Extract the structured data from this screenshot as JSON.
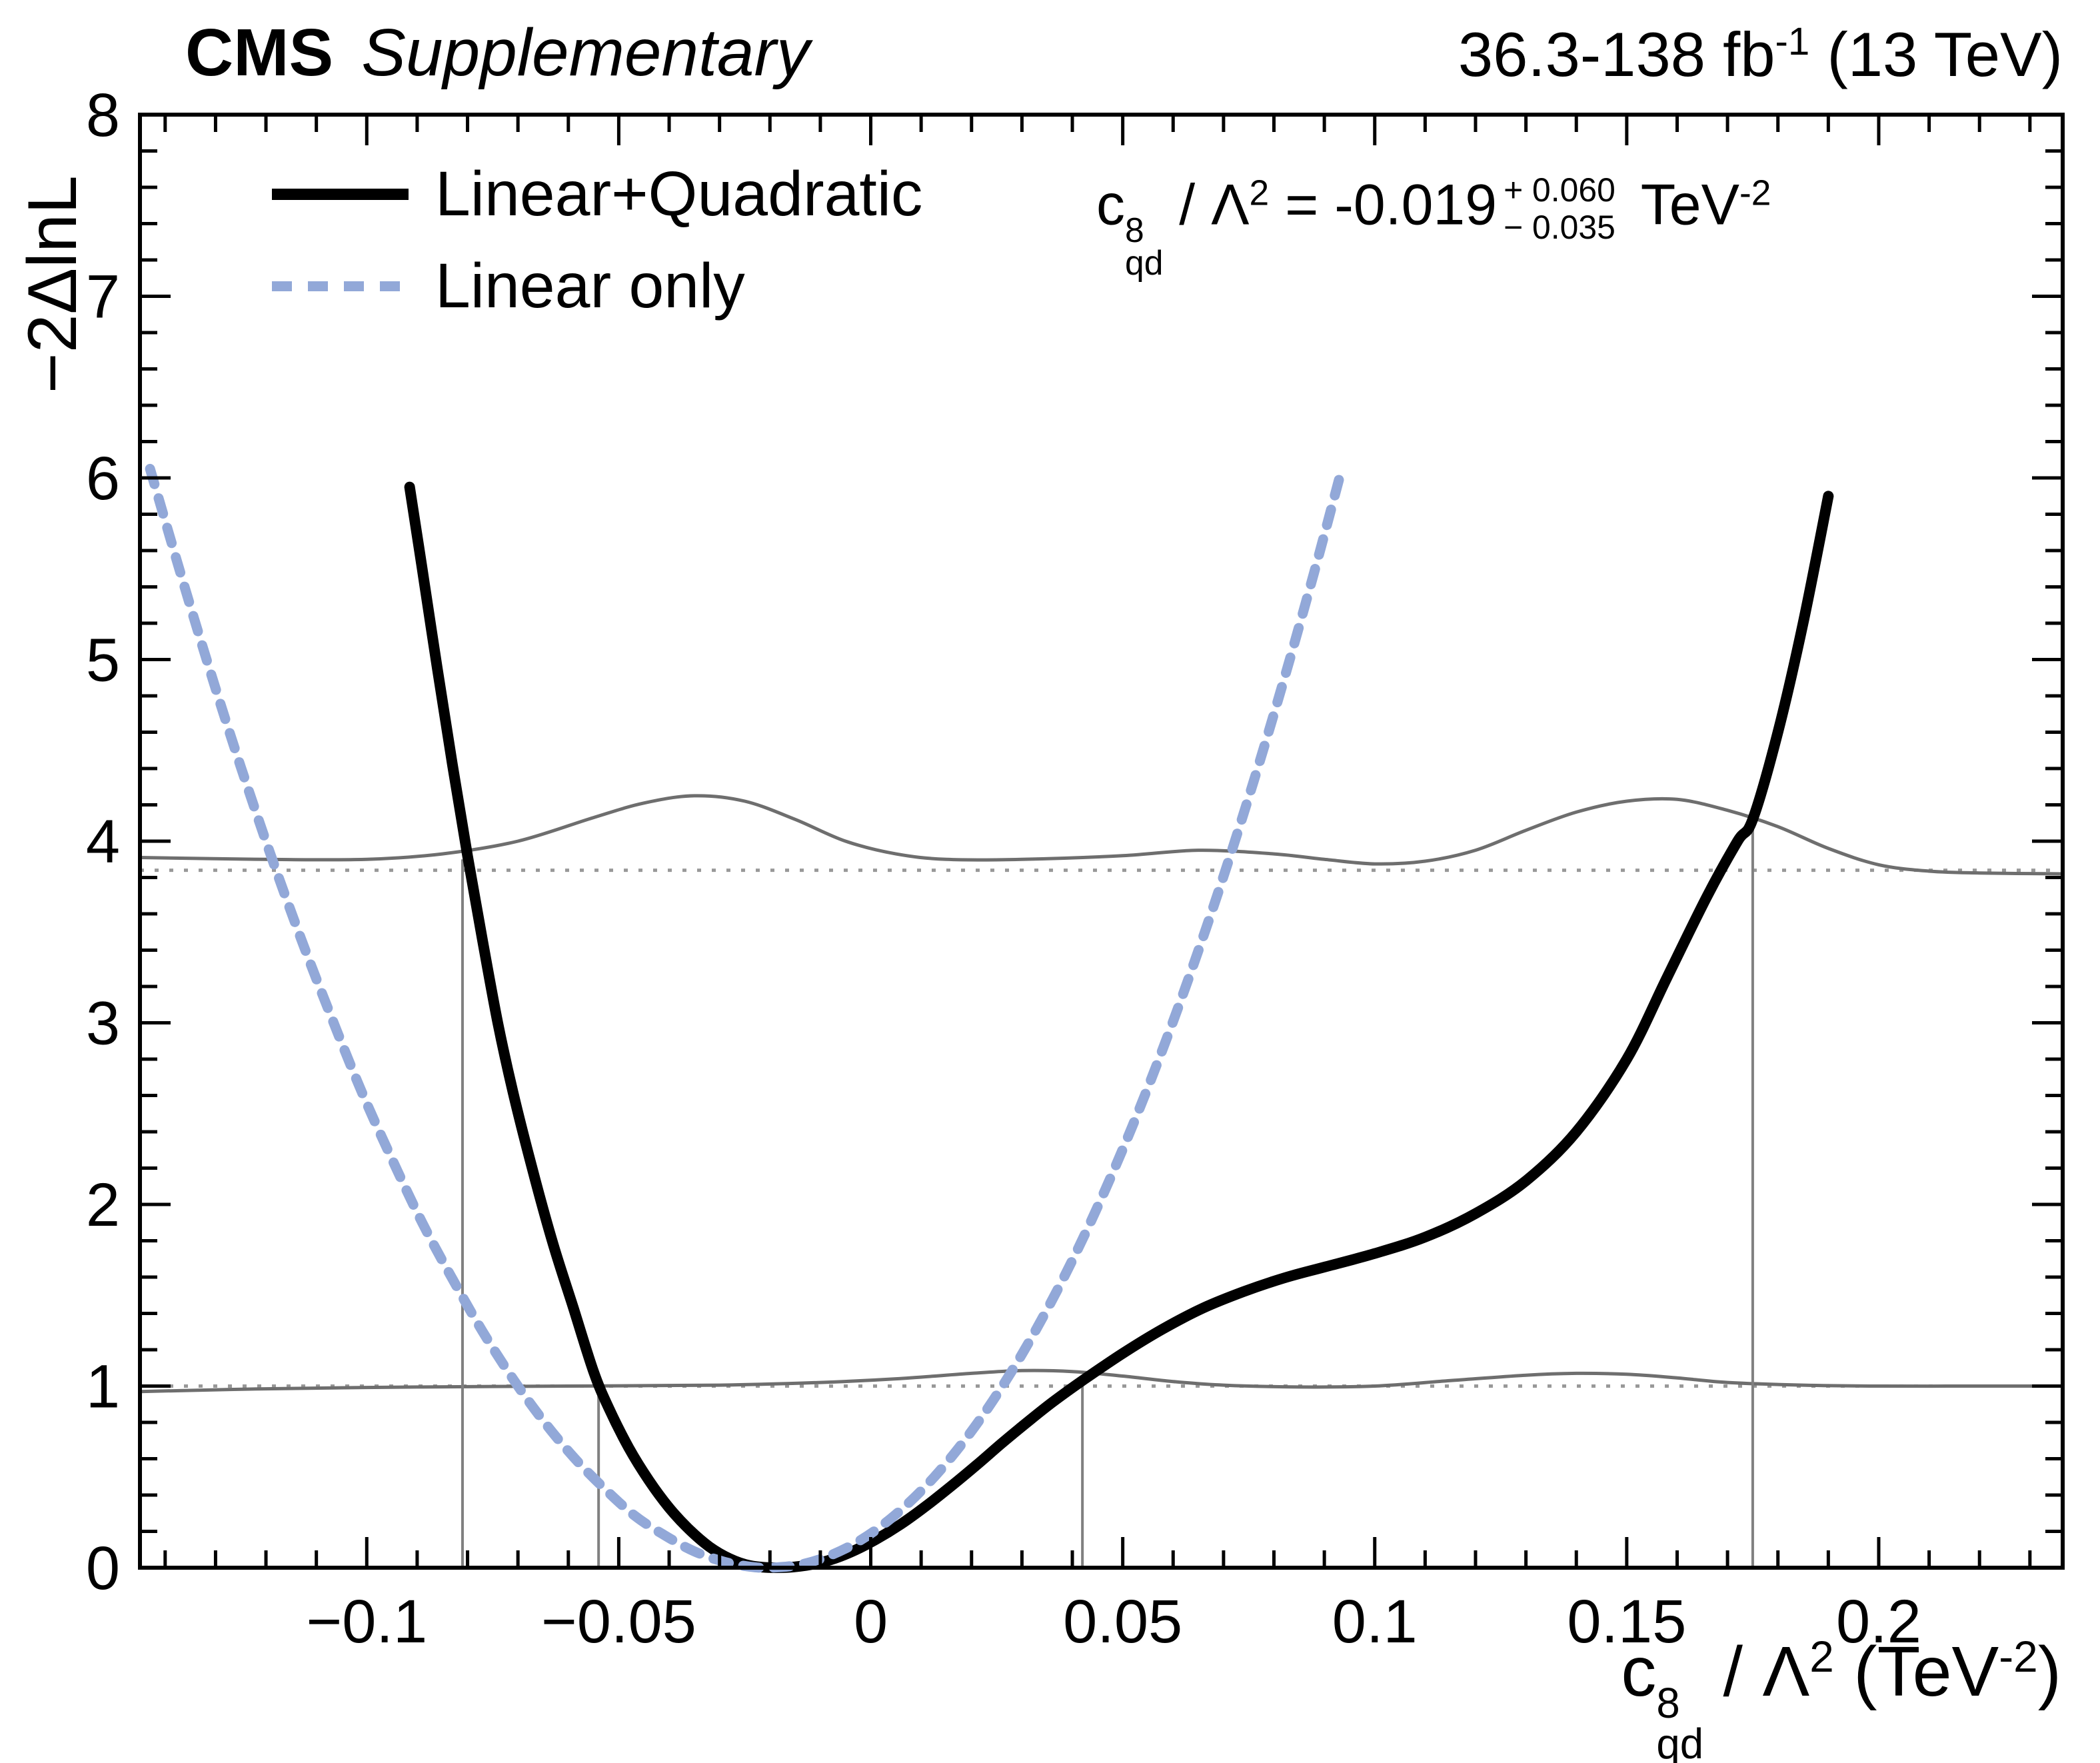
{
  "header": {
    "experiment": "CMS",
    "tag": "Supplementary",
    "lumi_text": "36.3-138 fb",
    "lumi_sup": "-1",
    "lumi_suffix": " (13 TeV)"
  },
  "legend": {
    "items": [
      {
        "label": "Linear+Quadratic",
        "style": "solid",
        "color": "#000000"
      },
      {
        "label": "Linear only",
        "style": "dashed",
        "color": "#92a8d8"
      }
    ]
  },
  "result_annotation": {
    "coeff": "c",
    "coeff_sup": "8",
    "coeff_sub": "qd",
    "slash": " / ",
    "lambda": "Λ",
    "lambda_sup": "2",
    "equals": " = ",
    "central": "-0.019",
    "err_up": "+ 0.060",
    "err_down": "− 0.035",
    "unit": " TeV",
    "unit_sup": "-2"
  },
  "axes": {
    "y_title": "−2ΔlnL",
    "x_coeff": "c",
    "x_coeff_sup": "8",
    "x_coeff_sub": "qd",
    "x_mid": " / ",
    "x_lambda": "Λ",
    "x_lambda_sup": "2",
    "x_unit_pre": " (TeV",
    "x_unit_sup": "-2",
    "x_unit_post": ")"
  },
  "chart_data": {
    "type": "line",
    "title": "",
    "xlabel": "c^8_qd / Λ^2 (TeV^-2)",
    "ylabel": "−2ΔlnL",
    "xlim": [
      -0.145,
      0.2365
    ],
    "ylim": [
      0,
      8
    ],
    "xticks": [
      -0.1,
      -0.05,
      0,
      0.05,
      0.1,
      0.15,
      0.2
    ],
    "xtick_labels": [
      "−0.1",
      "−0.05",
      "0",
      "0.05",
      "0.1",
      "0.15",
      "0.2"
    ],
    "yticks": [
      0,
      1,
      2,
      3,
      4,
      5,
      6,
      7,
      8
    ],
    "ytick_labels": [
      "0",
      "1",
      "2",
      "3",
      "4",
      "5",
      "6",
      "7",
      "8"
    ],
    "x_minor_step": 0.01,
    "y_minor_step": 0.2,
    "grid": false,
    "legend_position": "top-left",
    "best_fit": {
      "value": -0.019,
      "err_up": 0.06,
      "err_down": 0.035,
      "unit": "TeV^-2"
    },
    "colors": {
      "frame": "#000000",
      "threshold": "#6e6e6e",
      "dotted": "#999999",
      "vertical": "#808080"
    },
    "series": [
      {
        "name": "Linear+Quadratic",
        "color": "#000000",
        "width": 16,
        "dash": null,
        "points": [
          [
            -0.0915,
            5.95
          ],
          [
            -0.089,
            5.5
          ],
          [
            -0.086,
            4.95
          ],
          [
            -0.083,
            4.42
          ],
          [
            -0.08,
            3.92
          ],
          [
            -0.077,
            3.45
          ],
          [
            -0.074,
            3.0
          ],
          [
            -0.071,
            2.62
          ],
          [
            -0.067,
            2.18
          ],
          [
            -0.063,
            1.78
          ],
          [
            -0.059,
            1.43
          ],
          [
            -0.055,
            1.08
          ],
          [
            -0.052,
            0.88
          ],
          [
            -0.048,
            0.66
          ],
          [
            -0.044,
            0.48
          ],
          [
            -0.04,
            0.33
          ],
          [
            -0.036,
            0.21
          ],
          [
            -0.032,
            0.115
          ],
          [
            -0.028,
            0.05
          ],
          [
            -0.024,
            0.012
          ],
          [
            -0.019,
            0.0
          ],
          [
            -0.014,
            0.008
          ],
          [
            -0.009,
            0.035
          ],
          [
            -0.004,
            0.085
          ],
          [
            0.001,
            0.155
          ],
          [
            0.006,
            0.24
          ],
          [
            0.011,
            0.34
          ],
          [
            0.016,
            0.45
          ],
          [
            0.021,
            0.565
          ],
          [
            0.026,
            0.685
          ],
          [
            0.031,
            0.8
          ],
          [
            0.036,
            0.91
          ],
          [
            0.042,
            1.03
          ],
          [
            0.05,
            1.18
          ],
          [
            0.058,
            1.315
          ],
          [
            0.066,
            1.43
          ],
          [
            0.074,
            1.52
          ],
          [
            0.082,
            1.595
          ],
          [
            0.09,
            1.655
          ],
          [
            0.1,
            1.73
          ],
          [
            0.11,
            1.82
          ],
          [
            0.12,
            1.95
          ],
          [
            0.13,
            2.13
          ],
          [
            0.14,
            2.4
          ],
          [
            0.15,
            2.8
          ],
          [
            0.158,
            3.25
          ],
          [
            0.166,
            3.7
          ],
          [
            0.172,
            4.0
          ],
          [
            0.175,
            4.12
          ],
          [
            0.18,
            4.6
          ],
          [
            0.185,
            5.2
          ],
          [
            0.19,
            5.9
          ]
        ]
      },
      {
        "name": "Linear only",
        "color": "#92a8d8",
        "width": 15,
        "dash": [
          24,
          22
        ],
        "points": [
          [
            -0.143,
            6.05
          ],
          [
            -0.137,
            5.48
          ],
          [
            -0.131,
            4.93
          ],
          [
            -0.125,
            4.41
          ],
          [
            -0.119,
            3.92
          ],
          [
            -0.113,
            3.46
          ],
          [
            -0.107,
            3.03
          ],
          [
            -0.101,
            2.62
          ],
          [
            -0.095,
            2.25
          ],
          [
            -0.089,
            1.9
          ],
          [
            -0.083,
            1.59
          ],
          [
            -0.077,
            1.3
          ],
          [
            -0.071,
            1.04
          ],
          [
            -0.065,
            0.81
          ],
          [
            -0.059,
            0.61
          ],
          [
            -0.053,
            0.44
          ],
          [
            -0.047,
            0.29
          ],
          [
            -0.041,
            0.18
          ],
          [
            -0.035,
            0.09
          ],
          [
            -0.029,
            0.032
          ],
          [
            -0.024,
            0.006
          ],
          [
            -0.02,
            0.0
          ],
          [
            -0.014,
            0.017
          ],
          [
            -0.008,
            0.068
          ],
          [
            -0.002,
            0.152
          ],
          [
            0.004,
            0.271
          ],
          [
            0.01,
            0.423
          ],
          [
            0.016,
            0.609
          ],
          [
            0.022,
            0.829
          ],
          [
            0.028,
            1.083
          ],
          [
            0.034,
            1.371
          ],
          [
            0.04,
            1.692
          ],
          [
            0.046,
            2.048
          ],
          [
            0.052,
            2.437
          ],
          [
            0.058,
            2.86
          ],
          [
            0.064,
            3.317
          ],
          [
            0.07,
            3.807
          ],
          [
            0.076,
            4.332
          ],
          [
            0.082,
            4.89
          ],
          [
            0.088,
            5.482
          ],
          [
            0.093,
            6.0
          ]
        ]
      },
      {
        "name": "toy-threshold-95cl",
        "color": "#6e6e6e",
        "width": 5,
        "dash": null,
        "points": [
          [
            -0.145,
            3.91
          ],
          [
            -0.12,
            3.9
          ],
          [
            -0.1,
            3.9
          ],
          [
            -0.085,
            3.93
          ],
          [
            -0.07,
            4.0
          ],
          [
            -0.055,
            4.13
          ],
          [
            -0.045,
            4.21
          ],
          [
            -0.035,
            4.25
          ],
          [
            -0.025,
            4.22
          ],
          [
            -0.015,
            4.12
          ],
          [
            -0.005,
            4.0
          ],
          [
            0.005,
            3.93
          ],
          [
            0.015,
            3.9
          ],
          [
            0.03,
            3.9
          ],
          [
            0.05,
            3.92
          ],
          [
            0.065,
            3.95
          ],
          [
            0.08,
            3.93
          ],
          [
            0.09,
            3.9
          ],
          [
            0.1,
            3.875
          ],
          [
            0.11,
            3.89
          ],
          [
            0.12,
            3.95
          ],
          [
            0.13,
            4.06
          ],
          [
            0.14,
            4.16
          ],
          [
            0.15,
            4.22
          ],
          [
            0.16,
            4.23
          ],
          [
            0.17,
            4.17
          ],
          [
            0.18,
            4.08
          ],
          [
            0.19,
            3.96
          ],
          [
            0.2,
            3.87
          ],
          [
            0.21,
            3.835
          ],
          [
            0.22,
            3.825
          ],
          [
            0.2365,
            3.82
          ]
        ]
      },
      {
        "name": "toy-threshold-68cl",
        "color": "#6e6e6e",
        "width": 5,
        "dash": null,
        "points": [
          [
            -0.145,
            0.97
          ],
          [
            -0.12,
            0.985
          ],
          [
            -0.09,
            0.995
          ],
          [
            -0.06,
            1.0
          ],
          [
            -0.03,
            1.005
          ],
          [
            -0.01,
            1.02
          ],
          [
            0.005,
            1.04
          ],
          [
            0.02,
            1.07
          ],
          [
            0.03,
            1.085
          ],
          [
            0.04,
            1.08
          ],
          [
            0.05,
            1.055
          ],
          [
            0.06,
            1.025
          ],
          [
            0.07,
            1.005
          ],
          [
            0.085,
            0.995
          ],
          [
            0.1,
            1.0
          ],
          [
            0.115,
            1.03
          ],
          [
            0.13,
            1.06
          ],
          [
            0.14,
            1.07
          ],
          [
            0.15,
            1.065
          ],
          [
            0.16,
            1.045
          ],
          [
            0.17,
            1.02
          ],
          [
            0.185,
            1.005
          ],
          [
            0.2,
            1.0
          ],
          [
            0.22,
            1.0
          ],
          [
            0.2365,
            1.0
          ]
        ]
      }
    ],
    "reference_lines": [
      {
        "y": 3.84,
        "style": "dotted"
      },
      {
        "y": 1.0,
        "style": "dotted"
      }
    ],
    "vertical_lines": [
      {
        "x": -0.081,
        "y1": 0,
        "y2": 3.9
      },
      {
        "x": -0.054,
        "y1": 0,
        "y2": 0.99
      },
      {
        "x": 0.042,
        "y1": 0,
        "y2": 1.02
      },
      {
        "x": 0.175,
        "y1": 0,
        "y2": 4.12
      }
    ]
  }
}
